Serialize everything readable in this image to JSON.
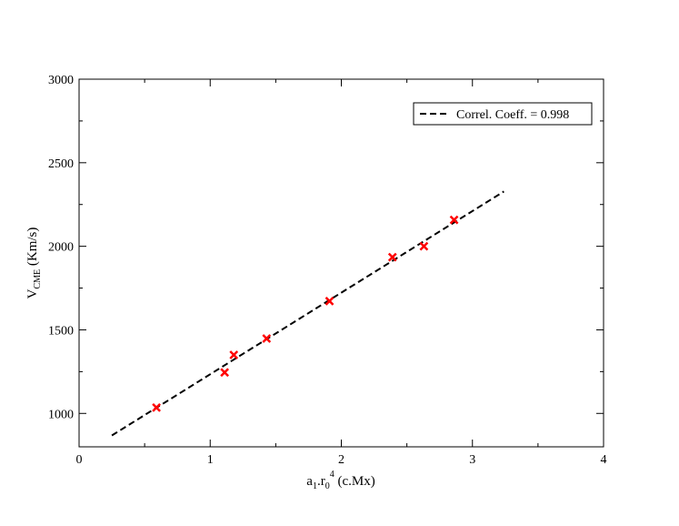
{
  "chart_data": {
    "type": "scatter",
    "title": "",
    "xlabel": {
      "base": "a",
      "sub1": "1",
      "mid": ".r",
      "sub2": "0",
      "sup": "4",
      "unit": " (c.Mx)"
    },
    "ylabel": {
      "base": "V",
      "sub": "CME",
      "unit": " (Km/s)"
    },
    "xlim": [
      0,
      4
    ],
    "ylim": [
      800,
      3000
    ],
    "xticks": [
      0,
      1,
      2,
      3,
      4
    ],
    "yticks": [
      1000,
      1500,
      2000,
      2500,
      3000
    ],
    "grid": false,
    "legend": {
      "position": "top-right",
      "label": "Correl. Coeff. = 0.998"
    },
    "series": [
      {
        "marker": "x",
        "color": "#ff0000",
        "points": [
          [
            0.59,
            1035
          ],
          [
            1.11,
            1245
          ],
          [
            1.18,
            1350
          ],
          [
            1.43,
            1448
          ],
          [
            1.91,
            1672
          ],
          [
            2.39,
            1935
          ],
          [
            2.63,
            2000
          ],
          [
            2.86,
            2158
          ]
        ]
      },
      {
        "type": "line",
        "style": "dashed",
        "color": "#000000",
        "points": [
          [
            0.25,
            868
          ],
          [
            3.24,
            2328
          ]
        ]
      }
    ]
  }
}
